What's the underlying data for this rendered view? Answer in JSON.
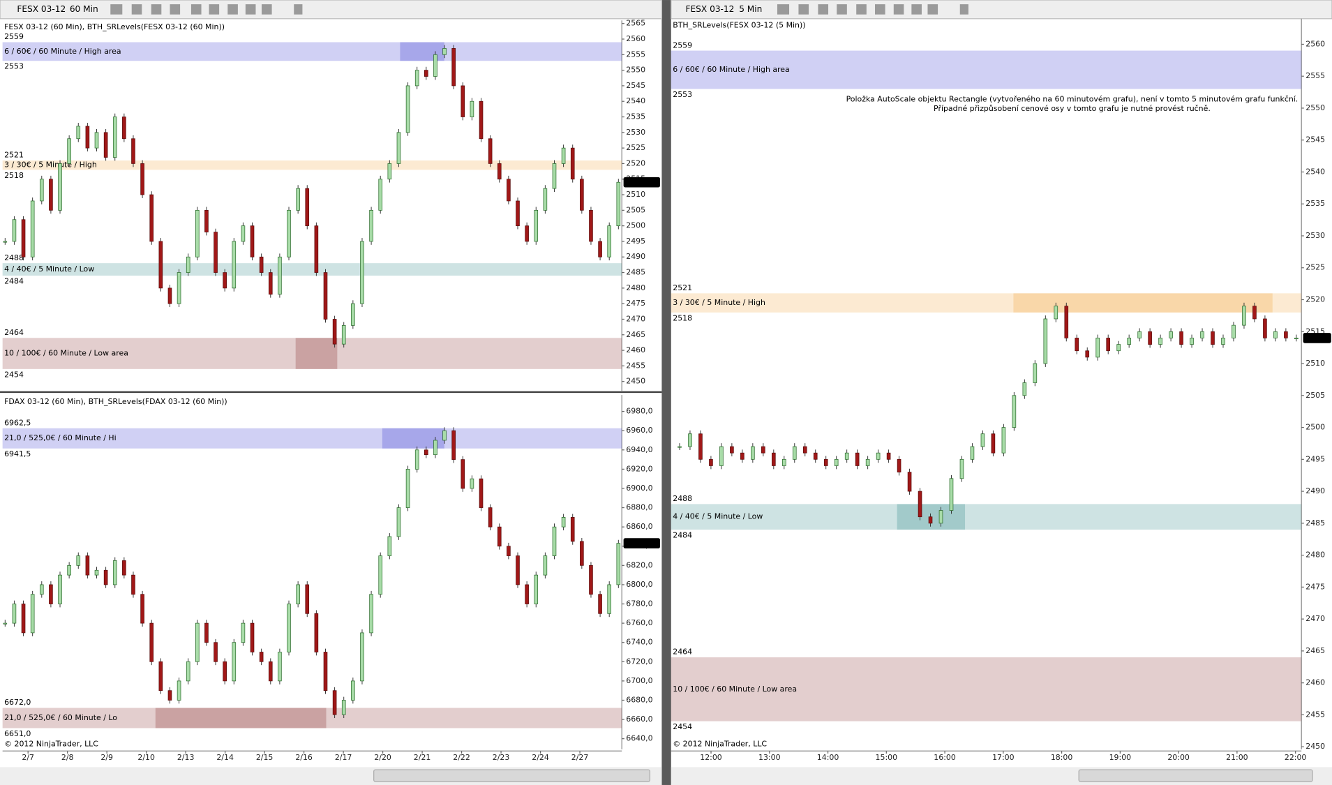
{
  "windows": [
    {
      "toolbar": {
        "instrument": "FESX 03-12",
        "interval": "60 Min"
      },
      "panels": [
        {
          "header": "FESX 03-12 (60 Min), BTH_SRLevels(FESX 03-12 (60 Min))",
          "ylim": [
            2447,
            2566
          ],
          "yticks": [
            2450,
            2455,
            2460,
            2465,
            2470,
            2475,
            2480,
            2485,
            2490,
            2495,
            2500,
            2505,
            2510,
            2515,
            2520,
            2525,
            2530,
            2535,
            2540,
            2545,
            2550,
            2555,
            2560,
            2565
          ],
          "last": 2514,
          "levels": [
            {
              "name": "6 / 60€ / 60 Minute / High area",
              "high": 2559,
              "low": 2553,
              "color": "#2a2acc"
            },
            {
              "name": "3 / 30€ / 5 Minute / High",
              "high": 2521,
              "low": 2518,
              "color": "#f0a030"
            },
            {
              "name": "4 / 40€ / 5 Minute / Low",
              "high": 2488,
              "low": 2484,
              "color": "#1f8080"
            },
            {
              "name": "10 / 100€ / 60 Minute / Low area",
              "high": 2464,
              "low": 2454,
              "color": "#802020"
            }
          ],
          "closes": [
            2495,
            2502,
            2490,
            2508,
            2515,
            2505,
            2520,
            2528,
            2532,
            2525,
            2530,
            2522,
            2535,
            2528,
            2520,
            2510,
            2495,
            2480,
            2475,
            2485,
            2490,
            2505,
            2498,
            2485,
            2480,
            2495,
            2500,
            2490,
            2485,
            2478,
            2490,
            2505,
            2512,
            2500,
            2485,
            2470,
            2462,
            2468,
            2475,
            2495,
            2505,
            2515,
            2520,
            2530,
            2545,
            2550,
            2548,
            2555,
            2557,
            2545,
            2535,
            2540,
            2528,
            2520,
            2515,
            2508,
            2500,
            2495,
            2505,
            2512,
            2520,
            2525,
            2515,
            2505,
            2495,
            2490,
            2500,
            2514
          ]
        },
        {
          "header": "FDAX 03-12 (60 Min), BTH_SRLevels(FDAX 03-12 (60 Min))",
          "ylim": [
            6629,
            6997
          ],
          "yticks": [
            {
              "value": 6640,
              "label": "6640,0"
            },
            {
              "value": 6660,
              "label": "6660,0"
            },
            {
              "value": 6680,
              "label": "6680,0"
            },
            {
              "value": 6700,
              "label": "6700,0"
            },
            {
              "value": 6720,
              "label": "6720,0"
            },
            {
              "value": 6740,
              "label": "6740,0"
            },
            {
              "value": 6760,
              "label": "6760,0"
            },
            {
              "value": 6780,
              "label": "6780,0"
            },
            {
              "value": 6800,
              "label": "6800,0"
            },
            {
              "value": 6820,
              "label": "6820,0"
            },
            {
              "value": 6840,
              "label": "6840,0"
            },
            {
              "value": 6860,
              "label": "6860,0"
            },
            {
              "value": 6880,
              "label": "6880,0"
            },
            {
              "value": 6900,
              "label": "6900,0"
            },
            {
              "value": 6920,
              "label": "6920,0"
            },
            {
              "value": 6940,
              "label": "6940,0"
            },
            {
              "value": 6960,
              "label": "6960,0"
            },
            {
              "value": 6980,
              "label": "6980,0"
            }
          ],
          "last": {
            "value": 6843,
            "label": "6843,0"
          },
          "levels": [
            {
              "name": "21,0 / 525,0€ / 60 Minute / Hi",
              "high": {
                "value": 6962.5,
                "label": "6962,5"
              },
              "low": {
                "value": 6941.5,
                "label": "6941,5"
              },
              "color": "#2a2acc"
            },
            {
              "name": "21,0 / 525,0€ / 60 Minute / Lo",
              "high": {
                "value": 6672,
                "label": "6672,0"
              },
              "low": {
                "value": 6651,
                "label": "6651,0"
              },
              "color": "#802020"
            }
          ],
          "closes": [
            6760,
            6780,
            6750,
            6790,
            6800,
            6780,
            6810,
            6820,
            6830,
            6810,
            6815,
            6800,
            6825,
            6810,
            6790,
            6760,
            6720,
            6690,
            6680,
            6700,
            6720,
            6760,
            6740,
            6720,
            6700,
            6740,
            6760,
            6730,
            6720,
            6700,
            6730,
            6780,
            6800,
            6770,
            6730,
            6690,
            6665,
            6680,
            6700,
            6750,
            6790,
            6830,
            6850,
            6880,
            6920,
            6940,
            6935,
            6950,
            6960,
            6930,
            6900,
            6910,
            6880,
            6860,
            6840,
            6830,
            6800,
            6780,
            6810,
            6830,
            6860,
            6870,
            6845,
            6820,
            6790,
            6770,
            6800,
            6843
          ]
        }
      ],
      "x_labels": [
        "2/7",
        "2/8",
        "2/9",
        "2/10",
        "2/13",
        "2/14",
        "2/15",
        "2/16",
        "2/17",
        "2/20",
        "2/21",
        "2/22",
        "2/23",
        "2/24",
        "2/27"
      ],
      "copyright": "© 2012 NinjaTrader, LLC"
    },
    {
      "toolbar": {
        "instrument": "FESX 03-12",
        "interval": "5 Min"
      },
      "panels": [
        {
          "header": "BTH_SRLevels(FESX 03-12 (5 Min))",
          "note": [
            "Položka AutoScale objektu Rectangle (vytvořeného na 60 minutovém grafu), není v tomto 5 minutovém grafu funkční.",
            "Případné přizpůsobení cenové osy v tomto grafu je nutné provést ručně."
          ],
          "ylim": [
            2449.6,
            2564
          ],
          "yticks": [
            2450,
            2455,
            2460,
            2465,
            2470,
            2475,
            2480,
            2485,
            2490,
            2495,
            2500,
            2505,
            2510,
            2515,
            2520,
            2525,
            2530,
            2535,
            2540,
            2545,
            2550,
            2555,
            2560
          ],
          "last": 2514,
          "levels": [
            {
              "name": "6 / 60€ / 60 Minute / High area",
              "high": 2559,
              "low": 2553,
              "color": "#2a2acc"
            },
            {
              "name": "3 / 30€ / 5 Minute / High",
              "high": 2521,
              "low": 2518,
              "color": "#f0a030"
            },
            {
              "name": "4 / 40€ / 5 Minute / Low",
              "high": 2488,
              "low": 2484,
              "color": "#1f8080"
            },
            {
              "name": "10 / 100€ / 60 Minute / Low area",
              "high": 2464,
              "low": 2454,
              "color": "#802020"
            }
          ],
          "closes": [
            2497,
            2499,
            2495,
            2494,
            2497,
            2496,
            2495,
            2497,
            2496,
            2494,
            2495,
            2497,
            2496,
            2495,
            2494,
            2495,
            2496,
            2494,
            2495,
            2496,
            2495,
            2493,
            2490,
            2486,
            2485,
            2487,
            2492,
            2495,
            2497,
            2499,
            2496,
            2500,
            2505,
            2507,
            2510,
            2517,
            2519,
            2514,
            2512,
            2511,
            2514,
            2512,
            2513,
            2514,
            2515,
            2513,
            2514,
            2515,
            2513,
            2514,
            2515,
            2513,
            2514,
            2516,
            2519,
            2517,
            2514,
            2515,
            2514,
            2514
          ]
        }
      ],
      "x_labels": [
        "12:00",
        "13:00",
        "14:00",
        "15:00",
        "16:00",
        "17:00",
        "18:00",
        "19:00",
        "20:00",
        "21:00",
        "22:00"
      ],
      "copyright": "© 2012 NinjaTrader, LLC"
    }
  ]
}
